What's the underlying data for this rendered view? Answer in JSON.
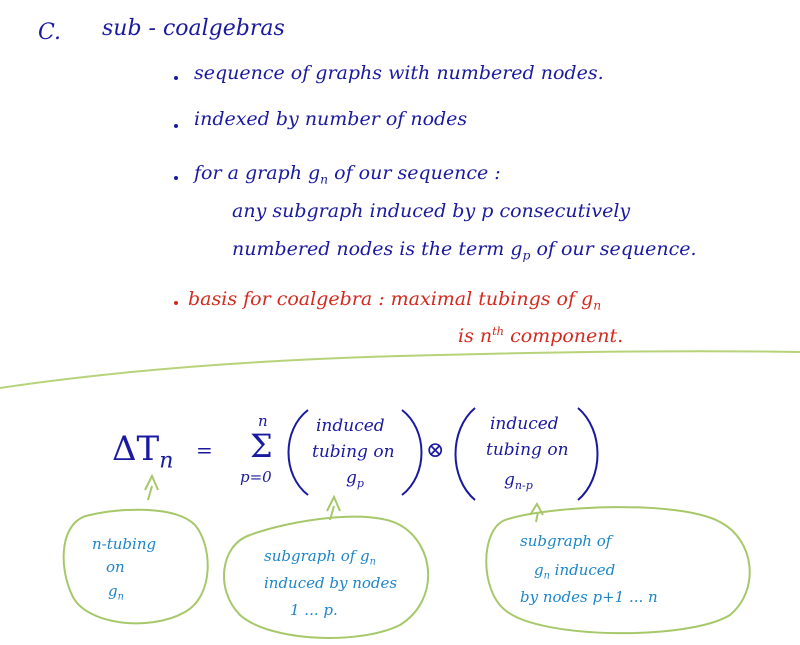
{
  "header": {
    "label": "C.",
    "title": "sub - coalgebras"
  },
  "bullets": [
    {
      "text": "sequence of graphs with numbered nodes."
    },
    {
      "text": "indexed by number of nodes"
    },
    {
      "line1": "for a graph g",
      "line1_sub": "n",
      "line1_tail": " of our sequence :",
      "line2": "any subgraph induced by p consecutively",
      "line3": "numbered nodes is the term g",
      "line3_sub": "p",
      "line3_tail": " of our sequence."
    },
    {
      "line1": "basis for coalgebra : maximal tubings of g",
      "line1_sub": "n",
      "line2_a": "is n",
      "line2_sup": "th",
      "line2_b": " component."
    }
  ],
  "formula": {
    "lhs": "ΔT",
    "lhs_sub": "n",
    "equals": "=",
    "sum_upper": "n",
    "sum_symbol": "Σ",
    "sum_lower": "p=0",
    "left_paren_lines": [
      "induced",
      "tubing on",
      "g"
    ],
    "left_paren_sub": "p",
    "otimes": "⊗",
    "right_paren_lines": [
      "induced",
      "tubing on",
      "g"
    ],
    "right_paren_sub": "n-p"
  },
  "bubbles": [
    {
      "lines": [
        "n-tubing",
        "on",
        "g"
      ],
      "last_sub": "n"
    },
    {
      "lines": [
        "subgraph of g",
        "induced by nodes",
        "1 ... p."
      ],
      "first_sub": "n"
    },
    {
      "lines": [
        "subgraph of",
        "g",
        "by nodes p+1 ... n"
      ],
      "second_sub": "n",
      "second_tail": " induced"
    }
  ],
  "colors": {
    "ink": "#1a1aa0",
    "highlight": "#d42a1e",
    "note": "#1d86c9",
    "divider": "#b7d37a"
  }
}
